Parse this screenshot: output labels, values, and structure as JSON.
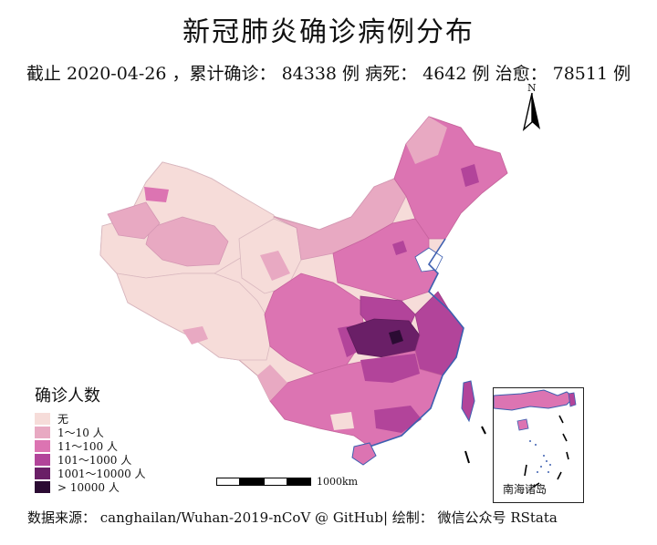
{
  "title": "新冠肺炎确诊病例分布",
  "subtitle": "截止 2020-04-26 ，累计确诊： 84338 例  病死： 4642 例  治愈： 78511 例",
  "north_arrow": {
    "label": "N"
  },
  "legend": {
    "title": "确诊人数",
    "items": [
      {
        "label": "无",
        "color": "#f6dcd9"
      },
      {
        "label": "1～10 人",
        "color": "#e8a9c2"
      },
      {
        "label": "11～100 人",
        "color": "#dc74b2"
      },
      {
        "label": "101～1000 人",
        "color": "#b2449a"
      },
      {
        "label": "1001～10000 人",
        "color": "#6a1f67"
      },
      {
        "label": "> 10000 人",
        "color": "#2b0b33"
      }
    ]
  },
  "scale_bar": {
    "label": "1000km"
  },
  "inset": {
    "label": "南海诸岛"
  },
  "source": "数据来源： canghailan/Wuhan-2019-nCoV @ GitHub| 绘制： 微信公众号 RStata"
}
